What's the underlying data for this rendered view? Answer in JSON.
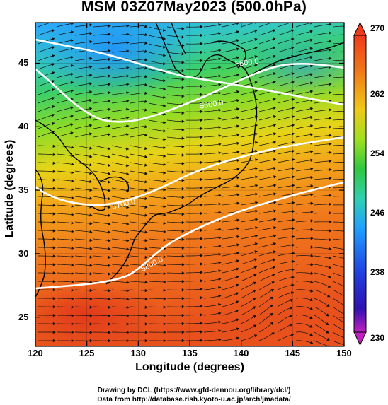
{
  "title": "MSM 03Z07May2023 (500.0hPa)",
  "x_axis": {
    "label": "Longitude (degrees)",
    "ticks": [
      "120",
      "125",
      "130",
      "135",
      "140",
      "145",
      "150"
    ]
  },
  "y_axis": {
    "label": "Latitude  (degrees)",
    "ticks": [
      "45",
      "40",
      "35",
      "30",
      "25"
    ]
  },
  "colorbar": {
    "ticks": [
      "270",
      "262",
      "254",
      "246",
      "238",
      "230"
    ],
    "min": 230,
    "max": 270
  },
  "contours": [
    {
      "label": "5500.0",
      "value": 5500
    },
    {
      "label": "5600.0",
      "value": 5600
    },
    {
      "label": "5700.0",
      "value": 5700
    },
    {
      "label": "5800.0",
      "value": 5800
    }
  ],
  "colors": {
    "cold": "#1ea0ff",
    "cool": "#2fd08a",
    "mid": "#7fe02a",
    "warm": "#f0c818",
    "hot": "#f05a1e",
    "contour": "#ffffff",
    "streamline": "#111111"
  },
  "credits": {
    "line1": "Drawing by DCL (https://www.gfd-dennou.org/library/dcl/)",
    "line2": "Data from http://database.rish.kyoto-u.ac.jp/arch/jmadata/"
  }
}
